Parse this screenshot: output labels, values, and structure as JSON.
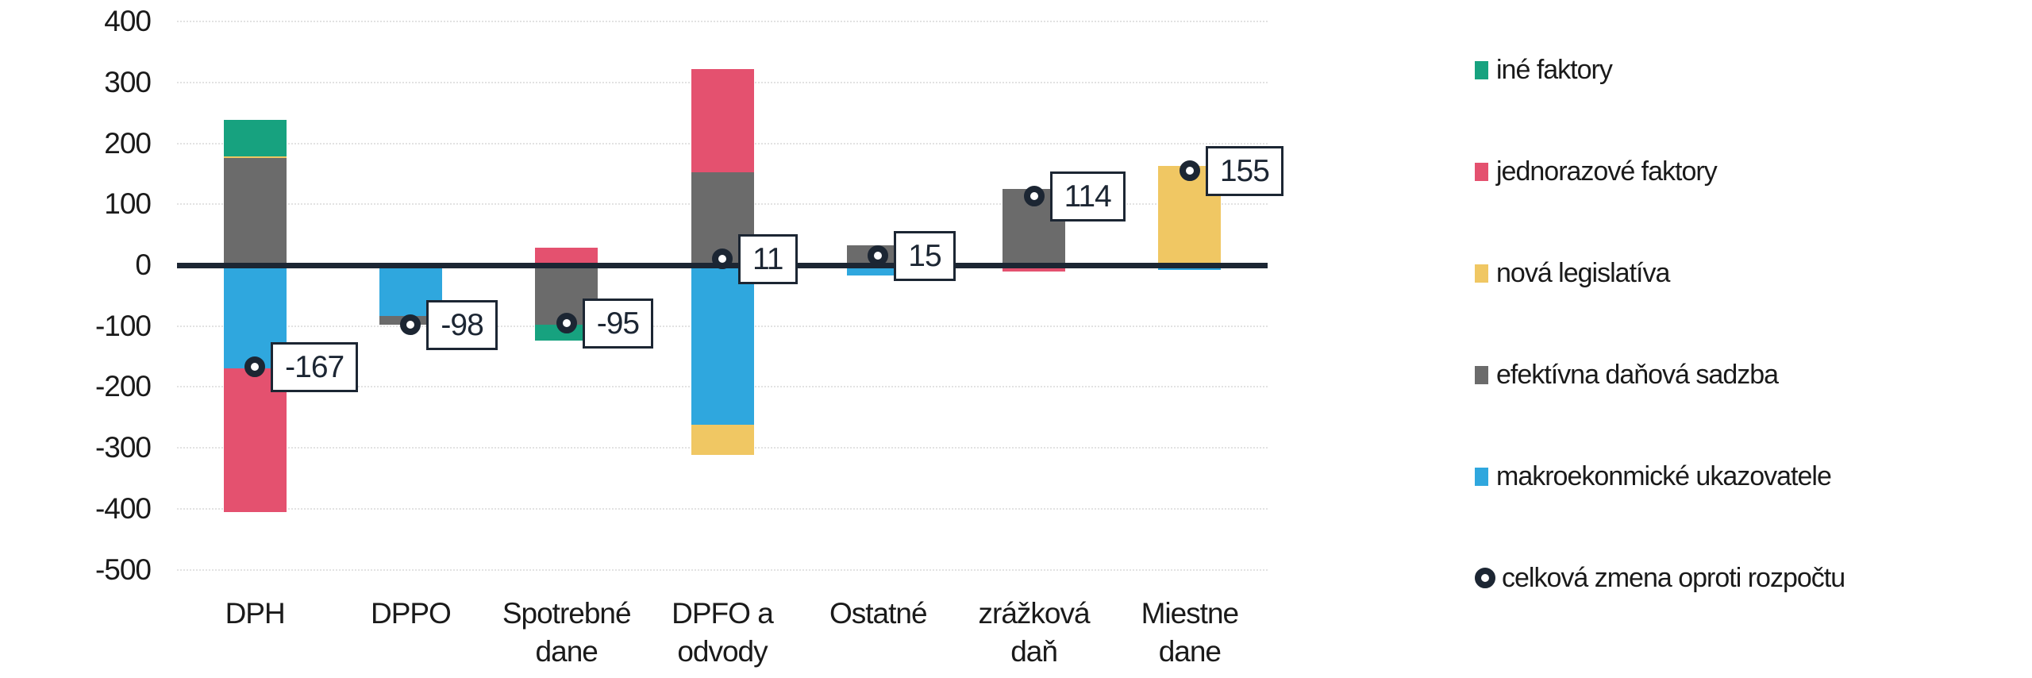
{
  "chart_data": {
    "type": "bar",
    "stacked": true,
    "title": "",
    "categories": [
      "DPH",
      "DPPO",
      "Spotrebné dane",
      "DPFO a odvody",
      "Ostatné",
      "zrážková daň",
      "Miestne dane"
    ],
    "category_label_lines": [
      [
        "DPH"
      ],
      [
        "DPPO"
      ],
      [
        "Spotrebné",
        "dane"
      ],
      [
        "DPFO a",
        "odvody"
      ],
      [
        "Ostatné"
      ],
      [
        "zrážková",
        "daň"
      ],
      [
        "Miestne",
        "dane"
      ]
    ],
    "series": [
      {
        "name": "iné faktory",
        "color": "#17A27F",
        "values": [
          60,
          0,
          -26,
          0,
          0,
          0,
          0
        ]
      },
      {
        "name": "jednorazové faktory",
        "color": "#E4516F",
        "values": [
          -236,
          0,
          29,
          169,
          0,
          -11,
          0
        ]
      },
      {
        "name": "nová legislatíva",
        "color": "#F0C763",
        "values": [
          3,
          0,
          0,
          -49,
          0,
          0,
          163
        ]
      },
      {
        "name": "efektívna daňová sadzba",
        "color": "#6B6B6B",
        "values": [
          176,
          -14,
          -98,
          153,
          32,
          125,
          0
        ]
      },
      {
        "name": "makroekonmické ukazovatele",
        "color": "#2FA7DE",
        "values": [
          -170,
          -84,
          0,
          -262,
          -17,
          0,
          -8
        ]
      }
    ],
    "stack_order_from_axis": [
      "makroekonmické ukazovatele",
      "efektívna daňová sadzba",
      "nová legislatíva",
      "jednorazové faktory",
      "iné faktory"
    ],
    "totals_series": {
      "name": "celková zmena oproti rozpočtu",
      "marker": "donut",
      "color": "#1C2633",
      "values": [
        -167,
        -98,
        -95,
        11,
        15,
        114,
        155
      ]
    },
    "data_labels": [
      "-167",
      "-98",
      "-95",
      "11",
      "15",
      "114",
      "155"
    ],
    "ylim": [
      -500,
      400
    ],
    "ytick_step": 100,
    "ytick_labels": [
      "400",
      "300",
      "200",
      "100",
      "0",
      "-100",
      "-200",
      "-300",
      "-400",
      "-500"
    ],
    "grid": "horizontal-dotted",
    "grid_color": "#E2E2E2",
    "axis_color": "#1C2633",
    "text_color": "#1A1A1A",
    "legend_position": "right"
  },
  "legend": {
    "items": [
      {
        "label": "iné faktory",
        "swatch": "square",
        "color": "#17A27F"
      },
      {
        "label": "jednorazové faktory",
        "swatch": "square",
        "color": "#E4516F"
      },
      {
        "label": "nová legislatíva",
        "swatch": "square",
        "color": "#F0C763"
      },
      {
        "label": "efektívna daňová sadzba",
        "swatch": "square",
        "color": "#6B6B6B"
      },
      {
        "label": "makroekonmické ukazovatele",
        "swatch": "square",
        "color": "#2FA7DE"
      },
      {
        "label": "celková zmena oproti rozpočtu",
        "swatch": "donut",
        "color": "#1C2633"
      }
    ]
  }
}
